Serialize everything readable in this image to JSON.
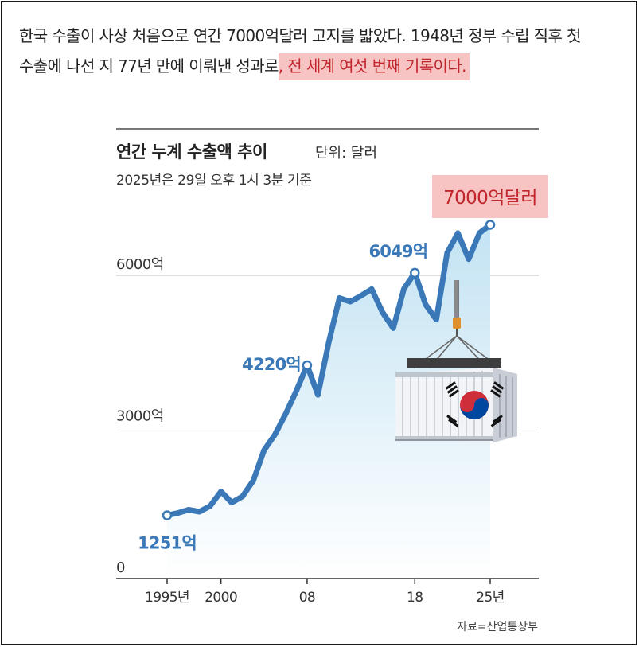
{
  "article": {
    "line1": "한국 수출이 사상 처음으로 연간 7000억달러 고지를 밟았다. 1948년 정부 수립 직후 첫",
    "line2_plain": "수출에 나선 지 77년 만에 이뤄낸 성과로",
    "line2_highlight": ", 전 세계 여섯 번째 기록이다."
  },
  "colors": {
    "line": "#3a78b8",
    "label": "#3a78b8",
    "highlight_bg": "#f7c3c3",
    "highlight_text": "#c0272d",
    "area_top": "#c3e3f3",
    "area_bottom": "#ffffff",
    "grid": "#bdbdbd"
  },
  "chart_data": {
    "type": "area",
    "title": "연간 누계 수출액 추이",
    "unit": "단위: 달러",
    "subtitle": "2025년은 29일 오후 1시 3분 기준",
    "source": "자료=산업통상부",
    "x_tick_labels": [
      {
        "x": 1995,
        "label": "1995년"
      },
      {
        "x": 2000,
        "label": "2000"
      },
      {
        "x": 2008,
        "label": "08"
      },
      {
        "x": 2018,
        "label": "18"
      },
      {
        "x": 2025,
        "label": "25년"
      }
    ],
    "y_tick_labels": [
      {
        "y": 0,
        "label": "0"
      },
      {
        "y": 3000,
        "label": "3000억"
      },
      {
        "y": 6000,
        "label": "6000억"
      }
    ],
    "ylim": [
      0,
      7600
    ],
    "grid": true,
    "series": [
      {
        "x": [
          1995,
          1996,
          1997,
          1998,
          1999,
          2000,
          2001,
          2002,
          2003,
          2004,
          2005,
          2006,
          2007,
          2008,
          2009,
          2010,
          2011,
          2012,
          2013,
          2014,
          2015,
          2016,
          2017,
          2018,
          2019,
          2020,
          2021,
          2022,
          2023,
          2024,
          2025
        ],
        "values": [
          1251,
          1298,
          1362,
          1323,
          1437,
          1723,
          1504,
          1625,
          1938,
          2538,
          2844,
          3255,
          3715,
          4220,
          3635,
          4664,
          5552,
          5479,
          5596,
          5727,
          5268,
          4954,
          5737,
          6049,
          5422,
          5125,
          6444,
          6836,
          6322,
          6838,
          7000
        ]
      }
    ],
    "annotations": [
      {
        "x": 1995,
        "y": 1251,
        "label": "1251억"
      },
      {
        "x": 2008,
        "y": 4220,
        "label": "4220억"
      },
      {
        "x": 2018,
        "y": 6049,
        "label": "6049억"
      },
      {
        "x": 2025,
        "y": 7000,
        "label": "7000억달러"
      }
    ]
  }
}
